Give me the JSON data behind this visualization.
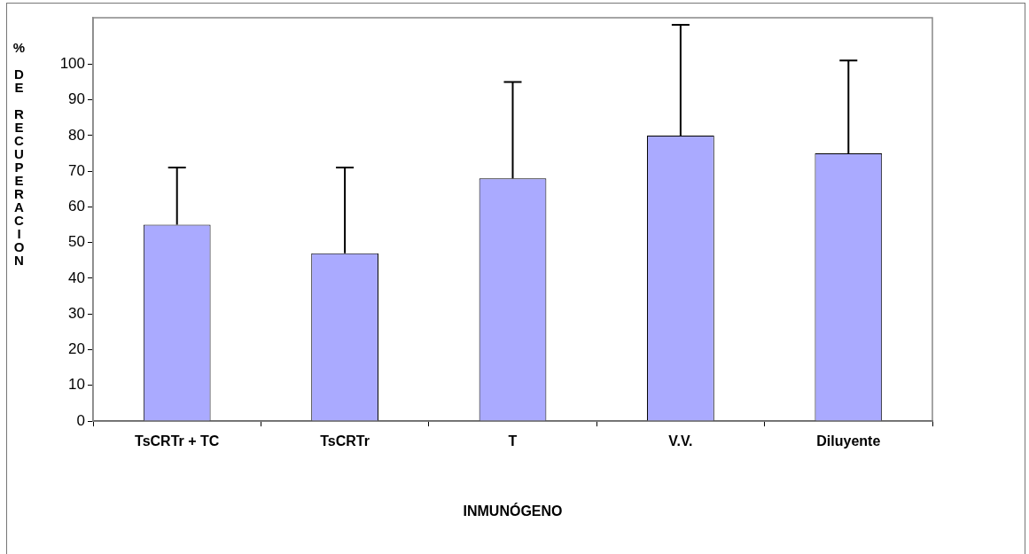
{
  "chart_data": {
    "type": "bar",
    "xlabel": "INMUNÓGENO",
    "ylabel": "% DE RECUPERACION",
    "categories": [
      "TsCRTr + TC",
      "TsCRTr",
      "T",
      "V.V.",
      "Diluyente"
    ],
    "values": [
      55,
      47,
      68,
      80,
      75
    ],
    "errors": [
      [
        55,
        71
      ],
      [
        47,
        71
      ],
      [
        68,
        95
      ],
      [
        80,
        111
      ],
      [
        75,
        101
      ]
    ],
    "color": "#aaaaff",
    "ylim": [
      0,
      113
    ],
    "yticks": [
      0,
      10,
      20,
      30,
      40,
      50,
      60,
      70,
      80,
      90,
      100
    ],
    "grid": false,
    "legend": false
  }
}
